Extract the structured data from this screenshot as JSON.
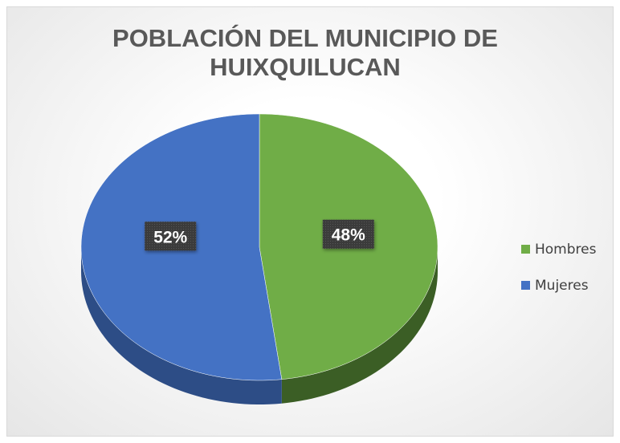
{
  "chart_data": {
    "type": "pie",
    "title": "POBLACIÓN DEL MUNICIPIO DE HUIXQUILUCAN",
    "categories": [
      "Hombres",
      "Mujeres"
    ],
    "values": [
      48,
      52
    ],
    "value_labels": [
      "48%",
      "52%"
    ],
    "colors": [
      "#70ad47",
      "#4472c4"
    ],
    "side_colors": [
      "#3b5e25",
      "#2d4d86"
    ],
    "legend": "right"
  }
}
